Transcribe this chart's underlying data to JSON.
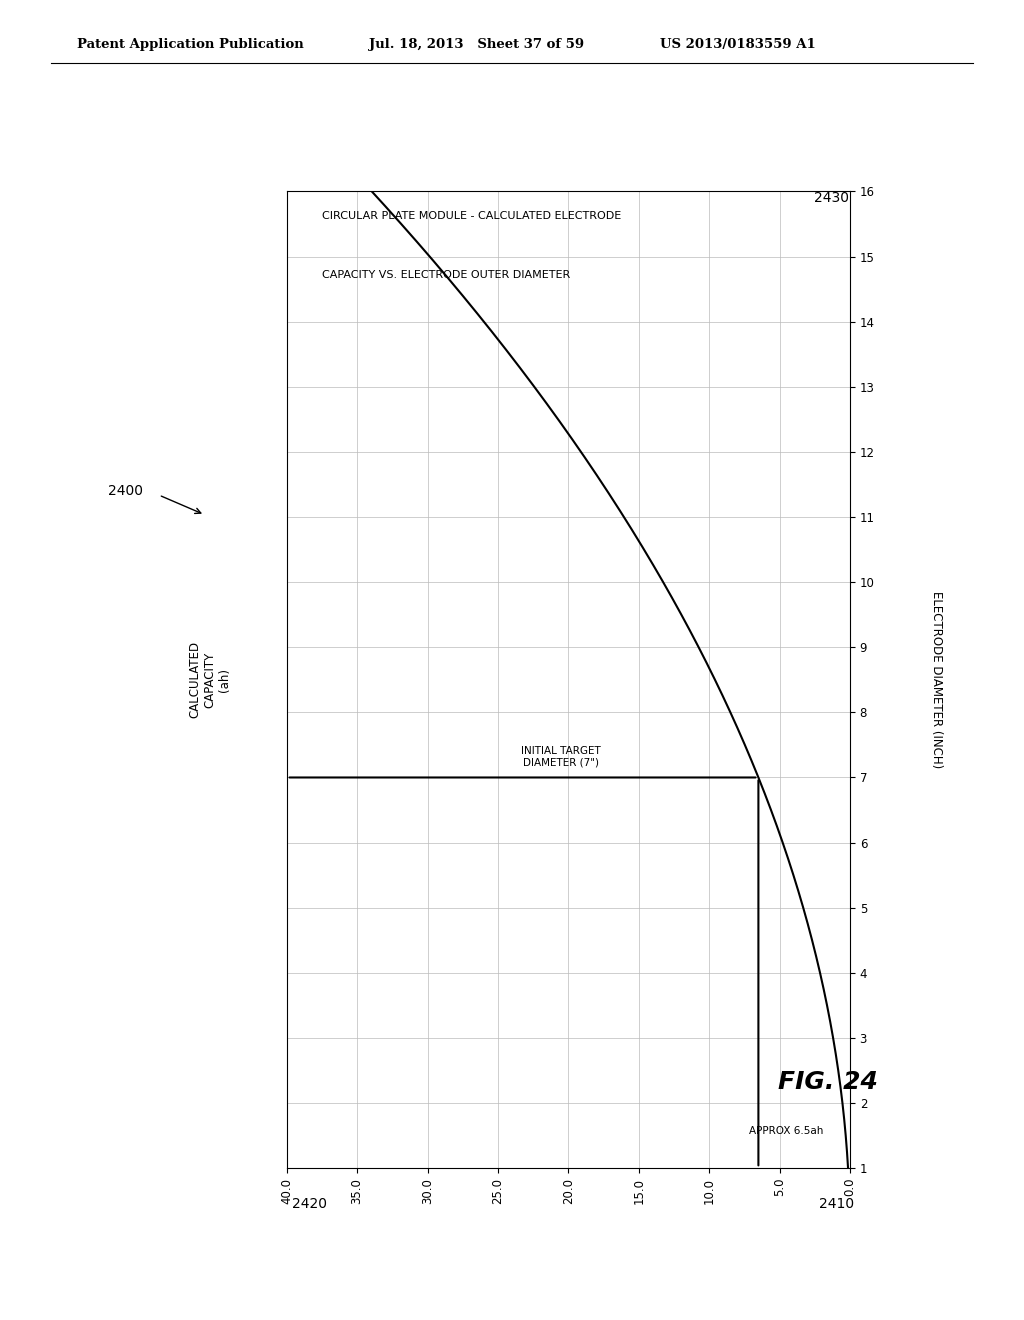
{
  "title_line1": "CIRCULAR PLATE MODULE - CALCULATED ELECTRODE",
  "title_line2": "CAPACITY VS. ELECTRODE OUTER DIAMETER",
  "xlabel_bottom": "ELECTRODE DIAMETER (INCH)",
  "ylabel_bottom": "CALCULATED\nCAPACITY\n(ah)",
  "diameter_ticks": [
    1,
    2,
    3,
    4,
    5,
    6,
    7,
    8,
    9,
    10,
    11,
    12,
    13,
    14,
    15,
    16
  ],
  "capacity_ticks": [
    0.0,
    5.0,
    10.0,
    15.0,
    20.0,
    25.0,
    30.0,
    35.0,
    40.0
  ],
  "label_2400": "2400",
  "label_2410": "2410",
  "label_2420": "2420",
  "label_2430": "2430",
  "annotation_initial_target": "INITIAL TARGET\nDIAMETER (7\")",
  "annotation_approx": "APPROX 6.5ah",
  "fig_label": "FIG. 24",
  "header_left": "Patent Application Publication",
  "header_mid": "Jul. 18, 2013   Sheet 37 of 59",
  "header_right": "US 2013/0183559 A1",
  "background_color": "#ffffff",
  "curve_color": "#000000",
  "grid_color": "#bbbbbb",
  "k_factor": 0.13265306122448978,
  "d_min": 1,
  "d_max": 16,
  "cap_min": 0.0,
  "cap_max": 40.0,
  "target_diameter": 7,
  "target_capacity": 6.5
}
